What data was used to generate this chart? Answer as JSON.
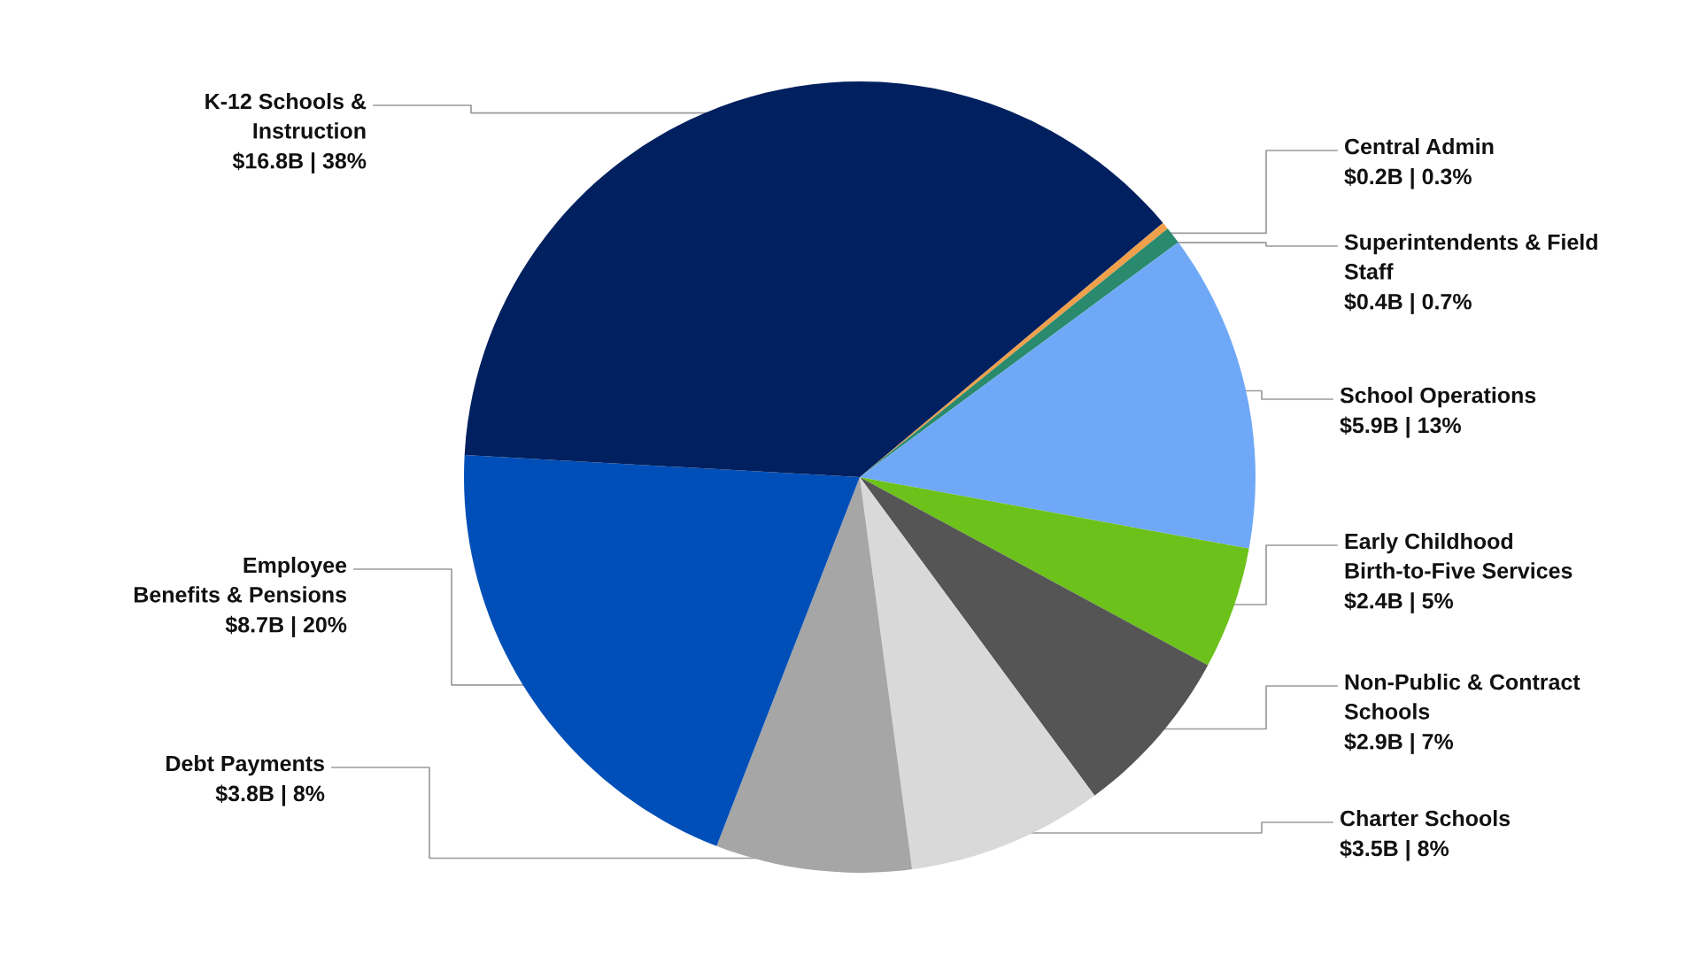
{
  "chart_data": {
    "type": "pie",
    "categories": [
      "Central Admin",
      "Superintendents & Field\nStaff",
      "School Operations",
      "Early Childhood\nBirth-to-Five Services",
      "Non-Public & Contract\nSchools",
      "Charter Schools",
      "Debt Payments",
      "Employee\nBenefits & Pensions",
      "K-12 Schools &\nInstruction"
    ],
    "values": [
      0.3,
      0.7,
      13,
      5,
      7,
      8,
      8,
      20,
      38
    ],
    "value_labels": [
      "$0.2B | 0.3%",
      "$0.4B | 0.7%",
      "$5.9B | 13%",
      "$2.4B | 5%",
      "$2.9B | 7%",
      "$3.5B | 8%",
      "$3.8B | 8%",
      "$8.7B | 20%",
      "$16.8B | 38%"
    ],
    "colors": [
      "#f0a04b",
      "#2a8a6e",
      "#6fa8f7",
      "#6cc11a",
      "#555555",
      "#d9d9d9",
      "#a6a6a6",
      "#004fb8",
      "#00205f"
    ]
  }
}
